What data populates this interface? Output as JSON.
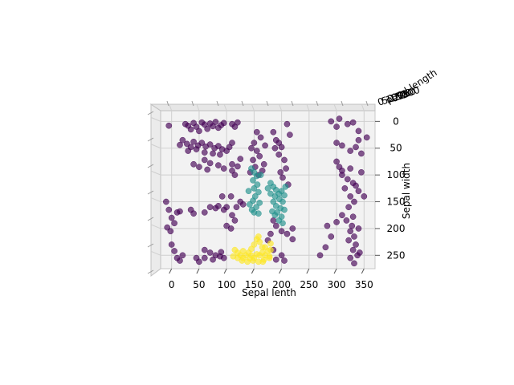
{
  "chart_data": {
    "type": "scatter",
    "projection": "3d",
    "title": "",
    "xlabel": "Sepal lenth",
    "ylabel": "Sepal width",
    "zlabel": "Petal length",
    "x_ticks": [
      "0",
      "50",
      "100",
      "150",
      "200",
      "250",
      "300",
      "350"
    ],
    "y_ticks": [
      "0",
      "50",
      "100",
      "150",
      "200",
      "250"
    ],
    "xlim": [
      -20,
      370
    ],
    "ylim": [
      -20,
      275
    ],
    "grid": true,
    "colormap": "viridis",
    "colors": {
      "class_0": "#440154",
      "class_1": "#21918c",
      "class_2": "#fde725",
      "pane": "#f2f2f2",
      "grid": "#d0d0d0"
    },
    "series": [
      {
        "class": 0,
        "color": "#440154",
        "points": [
          [
            25,
            5
          ],
          [
            30,
            8
          ],
          [
            40,
            3
          ],
          [
            45,
            10
          ],
          [
            55,
            2
          ],
          [
            60,
            6
          ],
          [
            70,
            4
          ],
          [
            75,
            9
          ],
          [
            80,
            1
          ],
          [
            35,
            15
          ],
          [
            50,
            18
          ],
          [
            65,
            14
          ],
          [
            85,
            12
          ],
          [
            90,
            7
          ],
          [
            95,
            3
          ],
          [
            -5,
            8
          ],
          [
            110,
            5
          ],
          [
            115,
            10
          ],
          [
            120,
            2
          ],
          [
            20,
            35
          ],
          [
            28,
            42
          ],
          [
            35,
            48
          ],
          [
            40,
            38
          ],
          [
            48,
            45
          ],
          [
            55,
            40
          ],
          [
            62,
            47
          ],
          [
            70,
            43
          ],
          [
            78,
            50
          ],
          [
            85,
            46
          ],
          [
            92,
            52
          ],
          [
            100,
            55
          ],
          [
            30,
            55
          ],
          [
            45,
            52
          ],
          [
            60,
            58
          ],
          [
            75,
            60
          ],
          [
            88,
            62
          ],
          [
            15,
            44
          ],
          [
            105,
            48
          ],
          [
            110,
            40
          ],
          [
            50,
            85
          ],
          [
            65,
            90
          ],
          [
            70,
            78
          ],
          [
            40,
            80
          ],
          [
            85,
            82
          ],
          [
            95,
            88
          ],
          [
            110,
            80
          ],
          [
            110,
            92
          ],
          [
            120,
            84
          ],
          [
            125,
            70
          ],
          [
            60,
            72
          ],
          [
            115,
            100
          ],
          [
            150,
            40
          ],
          [
            155,
            55
          ],
          [
            160,
            65
          ],
          [
            148,
            72
          ],
          [
            152,
            85
          ],
          [
            165,
            92
          ],
          [
            158,
            100
          ],
          [
            162,
            30
          ],
          [
            170,
            45
          ],
          [
            145,
            50
          ],
          [
            143,
            95
          ],
          [
            168,
            80
          ],
          [
            155,
            20
          ],
          [
            185,
            20
          ],
          [
            190,
            35
          ],
          [
            200,
            48
          ],
          [
            195,
            62
          ],
          [
            205,
            72
          ],
          [
            208,
            88
          ],
          [
            198,
            95
          ],
          [
            202,
            105
          ],
          [
            195,
            40
          ],
          [
            210,
            5
          ],
          [
            188,
            50
          ],
          [
            212,
            118
          ],
          [
            215,
            25
          ],
          [
            290,
            0
          ],
          [
            300,
            10
          ],
          [
            305,
            -5
          ],
          [
            320,
            5
          ],
          [
            330,
            2
          ],
          [
            340,
            18
          ],
          [
            300,
            40
          ],
          [
            310,
            45
          ],
          [
            325,
            55
          ],
          [
            335,
            48
          ],
          [
            345,
            60
          ],
          [
            340,
            35
          ],
          [
            355,
            30
          ],
          [
            300,
            75
          ],
          [
            305,
            85
          ],
          [
            310,
            92
          ],
          [
            325,
            88
          ],
          [
            310,
            100
          ],
          [
            320,
            108
          ],
          [
            330,
            115
          ],
          [
            335,
            120
          ],
          [
            340,
            130
          ],
          [
            350,
            140
          ],
          [
            325,
            140
          ],
          [
            332,
            150
          ],
          [
            315,
            125
          ],
          [
            345,
            95
          ],
          [
            322,
            160
          ],
          [
            330,
            178
          ],
          [
            310,
            175
          ],
          [
            318,
            185
          ],
          [
            328,
            195
          ],
          [
            325,
            205
          ],
          [
            332,
            215
          ],
          [
            335,
            230
          ],
          [
            330,
            240
          ],
          [
            338,
            250
          ],
          [
            325,
            255
          ],
          [
            332,
            265
          ],
          [
            342,
            245
          ],
          [
            300,
            188
          ],
          [
            322,
            222
          ],
          [
            340,
            200
          ],
          [
            -10,
            150
          ],
          [
            -5,
            165
          ],
          [
            0,
            180
          ],
          [
            5,
            190
          ],
          [
            -8,
            198
          ],
          [
            -2,
            205
          ],
          [
            10,
            170
          ],
          [
            15,
            168
          ],
          [
            35,
            165
          ],
          [
            40,
            172
          ],
          [
            60,
            170
          ],
          [
            70,
            160
          ],
          [
            80,
            162
          ],
          [
            85,
            158
          ],
          [
            95,
            165
          ],
          [
            100,
            160
          ],
          [
            110,
            175
          ],
          [
            115,
            185
          ],
          [
            100,
            195
          ],
          [
            108,
            200
          ],
          [
            0,
            230
          ],
          [
            5,
            242
          ],
          [
            10,
            255
          ],
          [
            15,
            260
          ],
          [
            20,
            250
          ],
          [
            60,
            240
          ],
          [
            70,
            245
          ],
          [
            80,
            250
          ],
          [
            90,
            244
          ],
          [
            60,
            255
          ],
          [
            75,
            258
          ],
          [
            88,
            252
          ],
          [
            95,
            255
          ],
          [
            50,
            262
          ],
          [
            45,
            255
          ],
          [
            118,
            160
          ],
          [
            108,
            140
          ],
          [
            125,
            150
          ],
          [
            130,
            155
          ],
          [
            185,
            185
          ],
          [
            190,
            195
          ],
          [
            200,
            205
          ],
          [
            210,
            210
          ],
          [
            180,
            210
          ],
          [
            175,
            222
          ],
          [
            185,
            240
          ],
          [
            200,
            250
          ],
          [
            205,
            260
          ],
          [
            190,
            258
          ],
          [
            220,
            200
          ],
          [
            220,
            220
          ],
          [
            283,
            195
          ],
          [
            290,
            215
          ],
          [
            280,
            235
          ],
          [
            270,
            250
          ],
          [
            92,
            140
          ]
        ]
      },
      {
        "class": 1,
        "color": "#21918c",
        "points": [
          [
            145,
            88
          ],
          [
            150,
            95
          ],
          [
            155,
            102
          ],
          [
            148,
            110
          ],
          [
            156,
            118
          ],
          [
            150,
            125
          ],
          [
            158,
            132
          ],
          [
            152,
            140
          ],
          [
            148,
            148
          ],
          [
            160,
            152
          ],
          [
            154,
            160
          ],
          [
            150,
            170
          ],
          [
            142,
            155
          ],
          [
            146,
            165
          ],
          [
            158,
            172
          ],
          [
            140,
            130
          ],
          [
            162,
            100
          ],
          [
            180,
            115
          ],
          [
            185,
            122
          ],
          [
            190,
            128
          ],
          [
            195,
            135
          ],
          [
            200,
            130
          ],
          [
            205,
            138
          ],
          [
            188,
            140
          ],
          [
            196,
            145
          ],
          [
            202,
            150
          ],
          [
            185,
            150
          ],
          [
            190,
            158
          ],
          [
            198,
            162
          ],
          [
            205,
            165
          ],
          [
            192,
            170
          ],
          [
            188,
            175
          ],
          [
            200,
            178
          ],
          [
            195,
            185
          ],
          [
            202,
            190
          ],
          [
            183,
            168
          ],
          [
            207,
            122
          ],
          [
            180,
            135
          ],
          [
            175,
            125
          ]
        ]
      },
      {
        "class": 2,
        "color": "#fde725",
        "points": [
          [
            115,
            240
          ],
          [
            120,
            245
          ],
          [
            125,
            250
          ],
          [
            130,
            255
          ],
          [
            135,
            250
          ],
          [
            140,
            245
          ],
          [
            145,
            250
          ],
          [
            150,
            255
          ],
          [
            155,
            248
          ],
          [
            160,
            250
          ],
          [
            165,
            245
          ],
          [
            170,
            250
          ],
          [
            175,
            242
          ],
          [
            120,
            255
          ],
          [
            128,
            260
          ],
          [
            138,
            262
          ],
          [
            148,
            260
          ],
          [
            158,
            262
          ],
          [
            168,
            258
          ],
          [
            178,
            255
          ],
          [
            150,
            230
          ],
          [
            155,
            220
          ],
          [
            160,
            225
          ],
          [
            165,
            235
          ],
          [
            145,
            238
          ],
          [
            170,
            235
          ],
          [
            180,
            240
          ],
          [
            180,
            228
          ],
          [
            158,
            215
          ],
          [
            178,
            252
          ],
          [
            112,
            252
          ],
          [
            130,
            242
          ],
          [
            142,
            256
          ],
          [
            166,
            262
          ]
        ]
      }
    ]
  }
}
